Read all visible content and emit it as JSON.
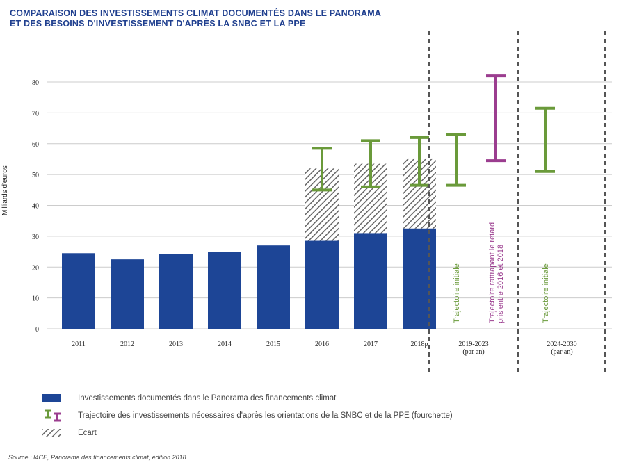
{
  "title_lines": [
    "COMPARAISON DES INVESTISSEMENTS CLIMAT DOCUMENTÉS DANS LE PANORAMA",
    "ET DES BESOINS D'INVESTISSEMENT D'APRÈS LA SNBC ET LA PPE"
  ],
  "colors": {
    "bar": "#1d4596",
    "green": "#6a9a3a",
    "purple": "#9b3d8f",
    "hatch": "#666666",
    "grid": "#cccccc",
    "title": "#1f3f8f"
  },
  "legend": {
    "bars": "Investissements documentés dans le Panorama des financements climat",
    "range": "Trajectoire des investissements nécessaires d'après les orientations de la SNBC et de la PPE (fourchette)",
    "gap": "Ecart"
  },
  "source": "Source : I4CE, Panorama des financements climat, édition 2018",
  "chart_data": {
    "type": "bar",
    "ylabel": "Milliards d'euros",
    "ylim": [
      0,
      80
    ],
    "yticks": [
      0,
      10,
      20,
      30,
      40,
      50,
      60,
      70,
      80
    ],
    "grid": true,
    "categories": [
      "2011",
      "2012",
      "2013",
      "2014",
      "2015",
      "2016",
      "2017",
      "2018p"
    ],
    "values": [
      24.5,
      22.5,
      24.3,
      24.8,
      27,
      28.5,
      31,
      32.5
    ],
    "gap_top": [
      null,
      null,
      null,
      null,
      null,
      52,
      53.5,
      55
    ],
    "ranges": [
      {
        "category": "2016",
        "low": 45,
        "high": 58.5,
        "color": "green"
      },
      {
        "category": "2017",
        "low": 46,
        "high": 61,
        "color": "green"
      },
      {
        "category": "2018p",
        "low": 46.5,
        "high": 62,
        "color": "green"
      }
    ],
    "periods": [
      {
        "label": "2019-2023",
        "sublabel": "(par an)",
        "ranges": [
          {
            "low": 46.5,
            "high": 63,
            "color": "green",
            "annotation": "Trajectoire initiale"
          },
          {
            "low": 54.5,
            "high": 82,
            "color": "purple",
            "annotation": "Trajectoire rattrapant le retard pris entre 2016 et 2018"
          }
        ]
      },
      {
        "label": "2024-2030",
        "sublabel": "(par an)",
        "ranges": [
          {
            "low": 51,
            "high": 71.5,
            "color": "green",
            "annotation": "Trajectoire initiale"
          }
        ]
      }
    ]
  }
}
